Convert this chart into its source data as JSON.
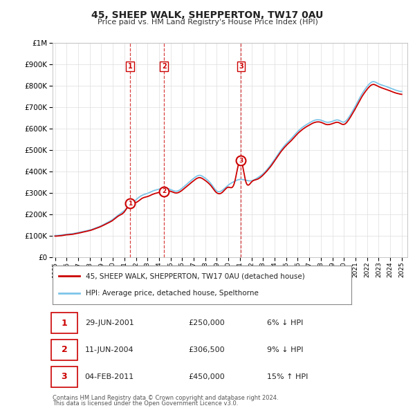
{
  "title": "45, SHEEP WALK, SHEPPERTON, TW17 0AU",
  "subtitle": "Price paid vs. HM Land Registry's House Price Index (HPI)",
  "legend_line1": "45, SHEEP WALK, SHEPPERTON, TW17 0AU (detached house)",
  "legend_line2": "HPI: Average price, detached house, Spelthorne",
  "footer1": "Contains HM Land Registry data © Crown copyright and database right 2024.",
  "footer2": "This data is licensed under the Open Government Licence v3.0.",
  "transactions": [
    {
      "num": 1,
      "date": "29-JUN-2001",
      "price": "£250,000",
      "hpi": "6% ↓ HPI",
      "year": 2001.49,
      "value": 250000
    },
    {
      "num": 2,
      "date": "11-JUN-2004",
      "price": "£306,500",
      "hpi": "9% ↓ HPI",
      "year": 2004.44,
      "value": 306500
    },
    {
      "num": 3,
      "date": "04-FEB-2011",
      "price": "£450,000",
      "hpi": "15% ↑ HPI",
      "year": 2011.09,
      "value": 450000
    }
  ],
  "hpi_color": "#7dc4e8",
  "price_color": "#cc0000",
  "dashed_color": "#cc0000",
  "ylim_max": 1000000,
  "ylim_min": 0,
  "xlim_min": 1994.8,
  "xlim_max": 2025.5,
  "background_color": "#ffffff",
  "grid_color": "#dddddd",
  "title_fontsize": 10,
  "subtitle_fontsize": 8.5,
  "ytick_labels": [
    "£0",
    "£100K",
    "£200K",
    "£300K",
    "£400K",
    "£500K",
    "£600K",
    "£700K",
    "£800K",
    "£900K",
    "£1M"
  ],
  "ytick_values": [
    0,
    100000,
    200000,
    300000,
    400000,
    500000,
    600000,
    700000,
    800000,
    900000,
    1000000
  ]
}
